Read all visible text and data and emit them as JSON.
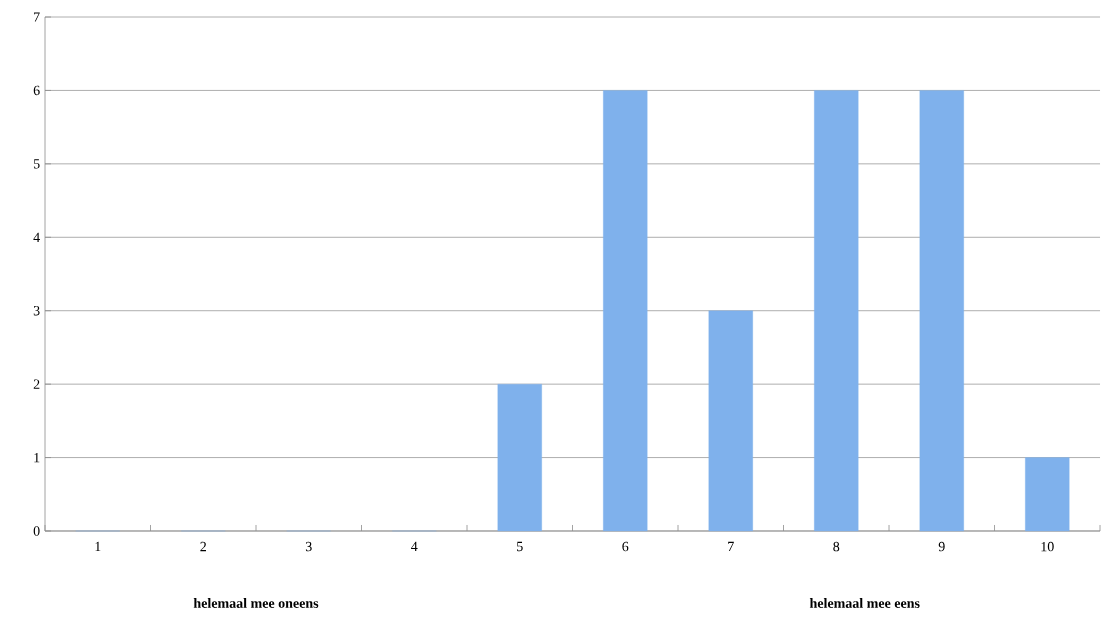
{
  "chart_data": {
    "type": "bar",
    "categories": [
      "1",
      "2",
      "3",
      "4",
      "5",
      "6",
      "7",
      "8",
      "9",
      "10"
    ],
    "values": [
      0,
      0,
      0,
      0,
      2,
      6,
      3,
      6,
      6,
      1
    ],
    "color": "#7fb1ec",
    "ylim": [
      0,
      7
    ],
    "yticks": [
      0,
      1,
      2,
      3,
      4,
      5,
      6,
      7
    ],
    "grid": "y",
    "annotations": [
      "helemaal mee oneens",
      "helemaal mee eens"
    ]
  }
}
